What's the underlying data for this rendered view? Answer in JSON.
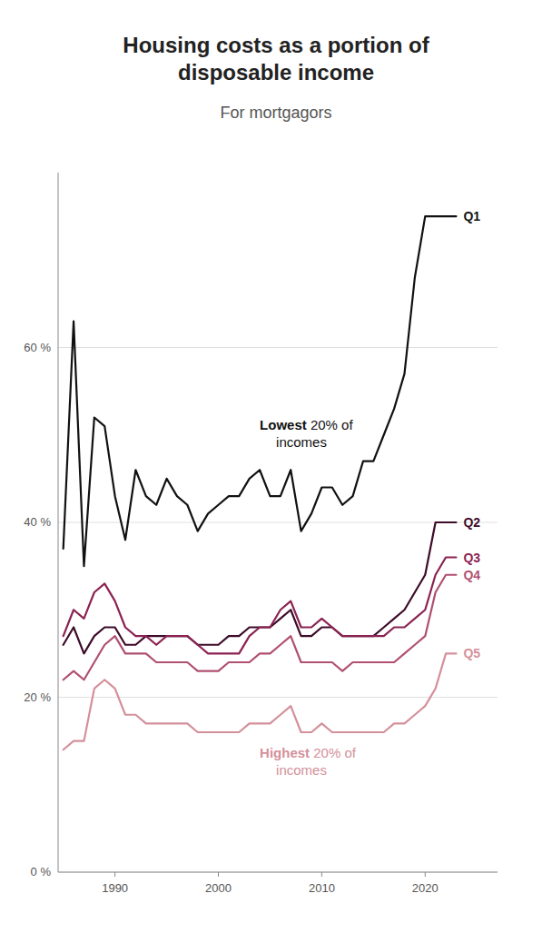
{
  "chart_data": {
    "type": "line",
    "title": "Housing costs as a portion of\ndisposable income",
    "subtitle": "For mortgagors",
    "x": [
      1985,
      1986,
      1987,
      1988,
      1989,
      1990,
      1991,
      1992,
      1993,
      1994,
      1995,
      1996,
      1997,
      1998,
      1999,
      2000,
      2001,
      2002,
      2003,
      2004,
      2005,
      2006,
      2007,
      2008,
      2009,
      2010,
      2011,
      2012,
      2013,
      2014,
      2015,
      2016,
      2017,
      2018,
      2019,
      2020,
      2021,
      2022,
      2023
    ],
    "series": [
      {
        "name": "Q1",
        "color": "#111111",
        "values": [
          37,
          63,
          35,
          52,
          51,
          43,
          38,
          46,
          43,
          42,
          45,
          43,
          42,
          39,
          41,
          42,
          43,
          43,
          45,
          46,
          43,
          43,
          46,
          39,
          41,
          44,
          44,
          42,
          43,
          47,
          47,
          50,
          53,
          57,
          68,
          75,
          75,
          75,
          75
        ]
      },
      {
        "name": "Q2",
        "color": "#3d0c2a",
        "values": [
          26,
          28,
          25,
          27,
          28,
          28,
          26,
          26,
          27,
          27,
          27,
          27,
          27,
          26,
          26,
          26,
          27,
          27,
          28,
          28,
          28,
          29,
          30,
          27,
          27,
          28,
          28,
          27,
          27,
          27,
          27,
          28,
          29,
          30,
          32,
          34,
          40,
          40,
          40
        ]
      },
      {
        "name": "Q3",
        "color": "#8b2252",
        "values": [
          27,
          30,
          29,
          32,
          33,
          31,
          28,
          27,
          27,
          26,
          27,
          27,
          27,
          26,
          25,
          25,
          25,
          25,
          27,
          28,
          28,
          30,
          31,
          28,
          28,
          29,
          28,
          27,
          27,
          27,
          27,
          27,
          28,
          28,
          29,
          30,
          34,
          36,
          36
        ]
      },
      {
        "name": "Q4",
        "color": "#b05070",
        "values": [
          22,
          23,
          22,
          24,
          26,
          27,
          25,
          25,
          25,
          24,
          24,
          24,
          24,
          23,
          23,
          23,
          24,
          24,
          24,
          25,
          25,
          26,
          27,
          24,
          24,
          24,
          24,
          23,
          24,
          24,
          24,
          24,
          24,
          25,
          26,
          27,
          32,
          34,
          34
        ]
      },
      {
        "name": "Q5",
        "color": "#d4909a",
        "values": [
          14,
          15,
          15,
          21,
          22,
          21,
          18,
          18,
          17,
          17,
          17,
          17,
          17,
          16,
          16,
          16,
          16,
          16,
          17,
          17,
          17,
          18,
          19,
          16,
          16,
          17,
          16,
          16,
          16,
          16,
          16,
          16,
          17,
          17,
          18,
          19,
          21,
          25,
          25
        ]
      }
    ],
    "annotations": [
      "Lowest 20% of incomes",
      "Highest 20% of incomes"
    ],
    "xlim": [
      1984.5,
      2027
    ],
    "xticks": [
      1990,
      2000,
      2010,
      2020
    ],
    "ylim": [
      0,
      80
    ],
    "yticks": [
      {
        "value": 0,
        "label": "0 %"
      },
      {
        "value": 20,
        "label": "20 %"
      },
      {
        "value": 40,
        "label": "40 %"
      },
      {
        "value": 60,
        "label": "60 %"
      }
    ],
    "grid": true
  }
}
